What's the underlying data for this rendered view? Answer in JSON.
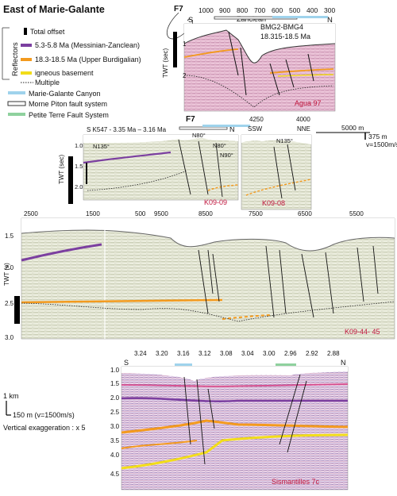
{
  "figure_title": "East of Marie-Galante",
  "legend": {
    "reflectors_label": "Reflectors",
    "total_offset": "Total offset",
    "messinian": "5.3-5.8 Ma (Messinian-Zanclean)",
    "burdigalian": "18.3-18.5 Ma (Upper Burdigalian)",
    "igneous": "igneous basement",
    "multiple": "Multiple",
    "canyon": "Marie-Galante Canyon",
    "morne_piton": "Morne Piton fault system",
    "petite_terre": "Petite Terre Fault System",
    "colors": {
      "messinian": "#7b3fa0",
      "burdigalian": "#f39a1e",
      "igneous": "#f2dd1a",
      "canyon": "#9fd3ec",
      "petite_terre": "#8fd19e"
    }
  },
  "panel_agua": {
    "fault_label": "F7",
    "axis_ticks": [
      "1000",
      "900",
      "800",
      "700",
      "600",
      "500",
      "400",
      "300"
    ],
    "left_end": "S",
    "right_end": "N",
    "zanclean": "Zanclean",
    "bmg_label": "BMG2-BMG4",
    "bmg_age": "18.315-18.5 Ma",
    "twt_label": "TWT (sec)",
    "twt_ticks": [
      "1",
      "2"
    ],
    "name": "Agua 97"
  },
  "panel_k0909": {
    "fault_label": "F7",
    "header": "S K547 - 3.35 Ma – 3.16 Ma",
    "tick_100": "100",
    "right_end": "N",
    "orient1": "N80°",
    "orient2": "N135°",
    "orient3": "N80°",
    "orient4": "N90°",
    "twt_label": "TWT (sec)",
    "twt_ticks": [
      "1.0",
      "1.5",
      "2.0"
    ],
    "name": "K09-09"
  },
  "panel_k0908": {
    "left_tick": "4250",
    "right_tick": "4000",
    "left_end": "SSW",
    "right_end": "NNE",
    "orient": "N135°",
    "name": "K09-08"
  },
  "scale_top": {
    "distance": "5000 m",
    "time": "375 m",
    "velocity": "v=1500m/s"
  },
  "panel_k094445": {
    "x_ticks": [
      "2500",
      "1500",
      "500",
      "9500",
      "8500",
      "7500",
      "6500",
      "5500"
    ],
    "y_ticks": [
      "1.5",
      "2.0",
      "2.5",
      "3.0"
    ],
    "y_label": "TWT (s)",
    "name": "K09-44- 45"
  },
  "panel_sism": {
    "x_ticks": [
      "3.24",
      "3.20",
      "3.16",
      "3.12",
      "3.08",
      "3.04",
      "3.00",
      "2.96",
      "2.92",
      "2.88"
    ],
    "y_ticks": [
      "1.0",
      "1.5",
      "2.0",
      "2.5",
      "3.0",
      "3.5",
      "4.0",
      "4.5"
    ],
    "left_end": "S",
    "right_end": "N",
    "name": "Sismantilles 7c"
  },
  "scale_bottom": {
    "distance": "1 km",
    "time": "150 m (v=1500m/s)",
    "exaggeration": "Vertical exaggeration : x 5"
  }
}
